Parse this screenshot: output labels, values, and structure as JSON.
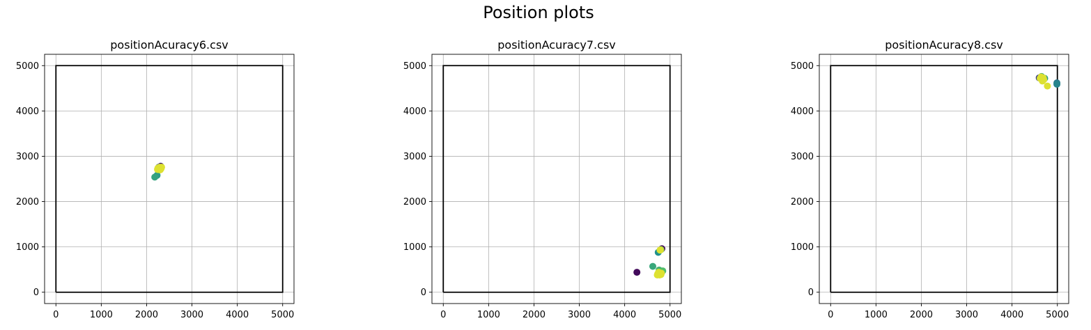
{
  "figure": {
    "suptitle": "Position plots"
  },
  "style": {
    "colors": {
      "grid": "#b0b0b0",
      "frame": "#000000",
      "viridis": [
        "#440154",
        "#3b528b",
        "#21918c",
        "#5ec962",
        "#fde725"
      ]
    }
  },
  "chart_data": [
    {
      "type": "scatter",
      "title": "positionAcuracy6.csv",
      "xlabel": "",
      "ylabel": "",
      "xlim": [
        -250,
        5250
      ],
      "ylim": [
        -250,
        5250
      ],
      "xticks": [
        0,
        1000,
        2000,
        3000,
        4000,
        5000
      ],
      "yticks": [
        0,
        1000,
        2000,
        3000,
        4000,
        5000
      ],
      "grid": true,
      "boundary": [
        [
          0,
          0
        ],
        [
          5000,
          0
        ],
        [
          5000,
          5000
        ],
        [
          0,
          5000
        ],
        [
          0,
          0
        ]
      ],
      "points": [
        {
          "x": 2310,
          "y": 2780,
          "c": 0.1
        },
        {
          "x": 2270,
          "y": 2760,
          "c": 0.3
        },
        {
          "x": 2300,
          "y": 2710,
          "c": 0.45
        },
        {
          "x": 2230,
          "y": 2580,
          "c": 0.55
        },
        {
          "x": 2180,
          "y": 2540,
          "c": 0.58
        },
        {
          "x": 2260,
          "y": 2700,
          "c": 0.7
        },
        {
          "x": 2250,
          "y": 2740,
          "c": 0.95
        },
        {
          "x": 2290,
          "y": 2760,
          "c": 0.95
        },
        {
          "x": 2320,
          "y": 2730,
          "c": 0.95
        },
        {
          "x": 2280,
          "y": 2720,
          "c": 0.95
        },
        {
          "x": 2300,
          "y": 2700,
          "c": 0.95
        },
        {
          "x": 2240,
          "y": 2710,
          "c": 0.95
        },
        {
          "x": 2330,
          "y": 2760,
          "c": 0.95
        }
      ]
    },
    {
      "type": "scatter",
      "title": "positionAcuracy7.csv",
      "xlabel": "",
      "ylabel": "",
      "xlim": [
        -250,
        5250
      ],
      "ylim": [
        -250,
        5250
      ],
      "xticks": [
        0,
        1000,
        2000,
        3000,
        4000,
        5000
      ],
      "yticks": [
        0,
        1000,
        2000,
        3000,
        4000,
        5000
      ],
      "grid": true,
      "boundary": [
        [
          0,
          0
        ],
        [
          5000,
          0
        ],
        [
          5000,
          5000
        ],
        [
          0,
          5000
        ],
        [
          0,
          0
        ]
      ],
      "points": [
        {
          "x": 4820,
          "y": 960,
          "c": 0.02
        },
        {
          "x": 4270,
          "y": 440,
          "c": 0.03
        },
        {
          "x": 4740,
          "y": 880,
          "c": 0.5
        },
        {
          "x": 4620,
          "y": 570,
          "c": 0.6
        },
        {
          "x": 4760,
          "y": 490,
          "c": 0.65
        },
        {
          "x": 4840,
          "y": 470,
          "c": 0.7
        },
        {
          "x": 4800,
          "y": 940,
          "c": 0.85
        },
        {
          "x": 4780,
          "y": 930,
          "c": 0.95
        },
        {
          "x": 4730,
          "y": 410,
          "c": 0.95
        },
        {
          "x": 4770,
          "y": 380,
          "c": 0.95
        },
        {
          "x": 4810,
          "y": 420,
          "c": 0.95
        },
        {
          "x": 4750,
          "y": 440,
          "c": 0.95
        },
        {
          "x": 4800,
          "y": 390,
          "c": 0.95
        },
        {
          "x": 4720,
          "y": 380,
          "c": 0.95
        }
      ]
    },
    {
      "type": "scatter",
      "title": "positionAcuracy8.csv",
      "xlabel": "",
      "ylabel": "",
      "xlim": [
        -250,
        5250
      ],
      "ylim": [
        -250,
        5250
      ],
      "xticks": [
        0,
        1000,
        2000,
        3000,
        4000,
        5000
      ],
      "yticks": [
        0,
        1000,
        2000,
        3000,
        4000,
        5000
      ],
      "grid": true,
      "boundary": [
        [
          0,
          0
        ],
        [
          5000,
          0
        ],
        [
          5000,
          5000
        ],
        [
          0,
          5000
        ],
        [
          0,
          0
        ]
      ],
      "points": [
        {
          "x": 4600,
          "y": 4730,
          "c": 0.2
        },
        {
          "x": 4990,
          "y": 4620,
          "c": 0.4
        },
        {
          "x": 4990,
          "y": 4590,
          "c": 0.45
        },
        {
          "x": 4720,
          "y": 4720,
          "c": 0.55
        },
        {
          "x": 4650,
          "y": 4760,
          "c": 0.6
        },
        {
          "x": 4780,
          "y": 4550,
          "c": 0.95
        },
        {
          "x": 4620,
          "y": 4720,
          "c": 0.95
        },
        {
          "x": 4660,
          "y": 4700,
          "c": 0.95
        },
        {
          "x": 4700,
          "y": 4690,
          "c": 0.95
        },
        {
          "x": 4640,
          "y": 4750,
          "c": 0.95
        },
        {
          "x": 4690,
          "y": 4730,
          "c": 0.95
        },
        {
          "x": 4670,
          "y": 4660,
          "c": 0.95
        }
      ]
    }
  ]
}
